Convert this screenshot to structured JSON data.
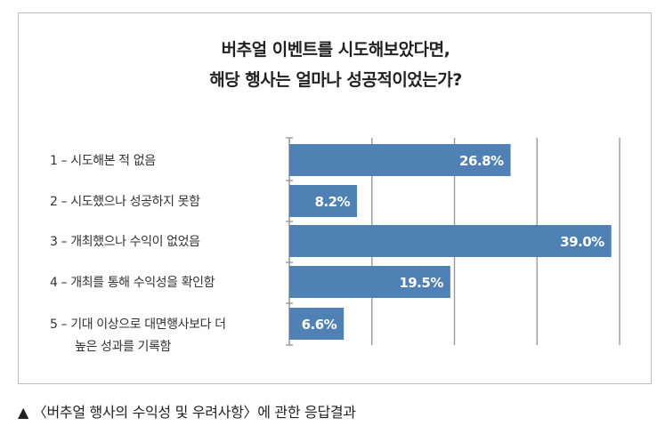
{
  "title_line1": "버추얼 이벤트를 시도해보았다면,",
  "title_line2": "해당 행사는 얼마나 성공적이었는가?",
  "caption": "▲ 〈버추얼 행사의 수익성 및 우려사항〉에 관한 응답결과",
  "colors": {
    "bar": "#4f81b5",
    "grid": "#9a9a9a",
    "label_text": "#ffffff"
  },
  "chart_data": {
    "type": "bar",
    "orientation": "horizontal",
    "categories": [
      [
        "1 – 시도해본 적 없음"
      ],
      [
        "2 – 시도했으나 성공하지 못함"
      ],
      [
        "3 – 개최했으나 수익이 없었음"
      ],
      [
        "4 – 개최를 통해 수익성을 확인함"
      ],
      [
        "5 – 기대 이상으로 대면행사보다 더",
        "높은 성과를 기록함"
      ]
    ],
    "values": [
      26.8,
      8.2,
      39.0,
      19.5,
      6.6
    ],
    "data_labels": [
      "26.8%",
      "8.2%",
      "39.0%",
      "19.5%",
      "6.6%"
    ],
    "xlim": [
      0,
      40
    ],
    "grid": true
  }
}
